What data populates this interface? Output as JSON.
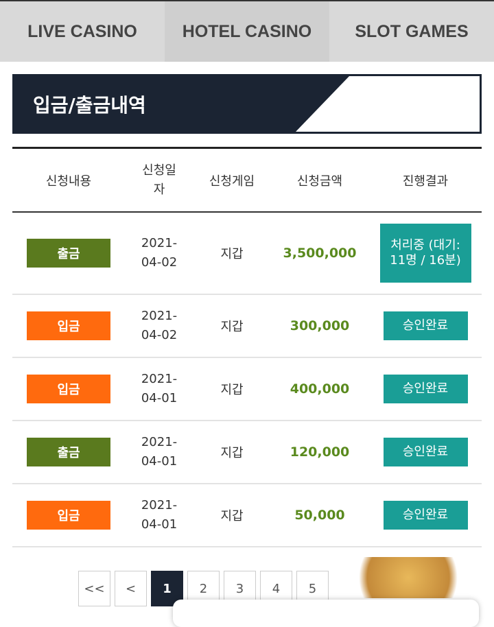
{
  "tabs": [
    "LIVE CASINO",
    "HOTEL CASINO",
    "SLOT GAMES"
  ],
  "header": {
    "title": "입금/출금내역"
  },
  "table": {
    "columns": [
      "신청내용",
      "신청일자",
      "신청게임",
      "신청금액",
      "진행결과"
    ],
    "rows": [
      [
        "출금",
        "2021-04-02",
        "지갑",
        "3,500,000",
        "처리중 (대기: 11명 / 16분)"
      ],
      [
        "입금",
        "2021-04-02",
        "지갑",
        "300,000",
        "승인완료"
      ],
      [
        "입금",
        "2021-04-01",
        "지갑",
        "400,000",
        "승인완료"
      ],
      [
        "출금",
        "2021-04-01",
        "지갑",
        "120,000",
        "승인완료"
      ],
      [
        "입금",
        "2021-04-01",
        "지갑",
        "50,000",
        "승인완료"
      ]
    ]
  },
  "pagination": {
    "buttons": [
      "<<",
      "<",
      "1",
      "2",
      "3",
      "4",
      "5"
    ],
    "active": "1"
  }
}
